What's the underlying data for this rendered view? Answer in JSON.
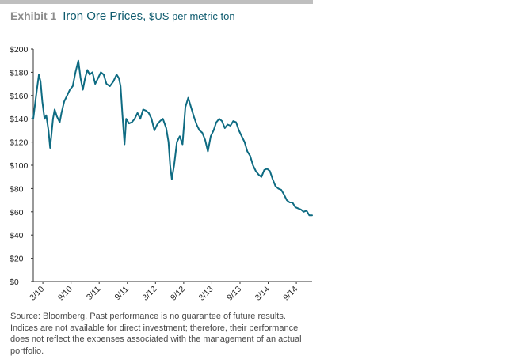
{
  "header": {
    "exhibit_label": "Exhibit 1",
    "title": "Iron Ore Prices,",
    "subtitle": "$US per metric ton"
  },
  "source_note": "Source: Bloomberg. Past performance is no guarantee of future results. Indices are not available for direct investment; therefore, their performance does not reflect the expenses associated with the management of an actual portfolio.",
  "colors": {
    "line": "#0e6b82",
    "axis": "#333333",
    "title": "#0e5b6e",
    "exhibit": "#8c8c8c"
  },
  "chart_data": {
    "type": "line",
    "title": "Iron Ore Prices, $US per metric ton",
    "xlabel": "",
    "ylabel": "",
    "ylim": [
      0,
      200
    ],
    "yticks": [
      0,
      20,
      40,
      60,
      80,
      100,
      120,
      140,
      160,
      180,
      200
    ],
    "ytick_labels": [
      "$0",
      "$20",
      "$40",
      "$60",
      "$80",
      "$100",
      "$120",
      "$140",
      "$160",
      "$180",
      "$200"
    ],
    "xlim": [
      2010.0,
      2014.95
    ],
    "xticks": [
      2010.17,
      2010.67,
      2011.17,
      2011.67,
      2012.17,
      2012.67,
      2013.17,
      2013.67,
      2014.17,
      2014.67
    ],
    "xtick_labels": [
      "3/10",
      "9/10",
      "3/11",
      "9/11",
      "3/12",
      "9/12",
      "3/13",
      "9/13",
      "3/14",
      "9/14"
    ],
    "grid": false,
    "series": [
      {
        "name": "",
        "x": [
          2010.0,
          2010.05,
          2010.1,
          2010.13,
          2010.16,
          2010.2,
          2010.23,
          2010.27,
          2010.3,
          2010.35,
          2010.38,
          2010.42,
          2010.47,
          2010.5,
          2010.55,
          2010.6,
          2010.65,
          2010.7,
          2010.75,
          2010.8,
          2010.84,
          2010.88,
          2010.92,
          2010.96,
          2011.0,
          2011.05,
          2011.1,
          2011.15,
          2011.2,
          2011.25,
          2011.3,
          2011.36,
          2011.42,
          2011.48,
          2011.52,
          2011.55,
          2011.58,
          2011.62,
          2011.65,
          2011.7,
          2011.75,
          2011.8,
          2011.85,
          2011.9,
          2011.95,
          2012.0,
          2012.05,
          2012.1,
          2012.15,
          2012.2,
          2012.25,
          2012.3,
          2012.36,
          2012.4,
          2012.43,
          2012.46,
          2012.5,
          2012.55,
          2012.6,
          2012.65,
          2012.7,
          2012.75,
          2012.8,
          2012.85,
          2012.9,
          2012.95,
          2013.0,
          2013.05,
          2013.1,
          2013.15,
          2013.2,
          2013.25,
          2013.3,
          2013.35,
          2013.4,
          2013.45,
          2013.5,
          2013.55,
          2013.6,
          2013.65,
          2013.7,
          2013.75,
          2013.8,
          2013.85,
          2013.9,
          2013.95,
          2014.0,
          2014.05,
          2014.1,
          2014.15,
          2014.2,
          2014.25,
          2014.3,
          2014.35,
          2014.4,
          2014.45,
          2014.5,
          2014.55,
          2014.6,
          2014.65,
          2014.7,
          2014.75,
          2014.8,
          2014.85,
          2014.9,
          2014.95
        ],
        "y": [
          140,
          160,
          178,
          172,
          155,
          140,
          143,
          130,
          115,
          140,
          148,
          142,
          137,
          145,
          155,
          160,
          165,
          168,
          180,
          190,
          175,
          165,
          175,
          182,
          178,
          180,
          170,
          175,
          180,
          178,
          170,
          168,
          172,
          178,
          175,
          168,
          145,
          118,
          140,
          136,
          137,
          140,
          145,
          140,
          148,
          147,
          145,
          140,
          130,
          135,
          138,
          140,
          132,
          120,
          100,
          88,
          100,
          120,
          125,
          118,
          150,
          158,
          150,
          142,
          135,
          130,
          128,
          122,
          112,
          125,
          130,
          137,
          140,
          138,
          132,
          135,
          134,
          138,
          137,
          130,
          125,
          120,
          112,
          108,
          100,
          95,
          92,
          90,
          96,
          97,
          95,
          88,
          82,
          80,
          79,
          75,
          70,
          68,
          68,
          64,
          63,
          62,
          60,
          61,
          57,
          57
        ]
      }
    ]
  }
}
